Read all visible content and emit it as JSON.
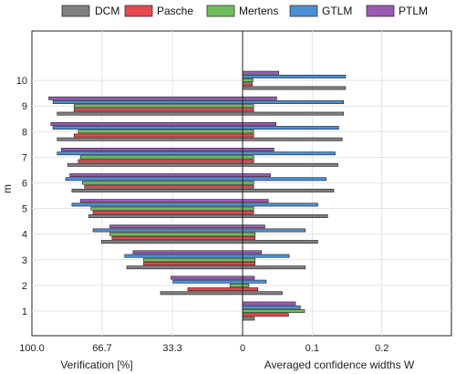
{
  "chart_data": {
    "type": "bar",
    "orientation": "horizontal",
    "legend_position": "top",
    "grid": true,
    "y": {
      "label": "m",
      "categories": [
        1,
        2,
        3,
        4,
        5,
        6,
        7,
        8,
        9,
        10
      ],
      "tick_labels": [
        "1",
        "2",
        "3",
        "4",
        "5",
        "6",
        "7",
        "8",
        "9",
        "10"
      ]
    },
    "left_panel": {
      "xlabel": "Verification [%]",
      "xlim": [
        100,
        0
      ],
      "ticks": [
        100,
        66.7,
        33.3,
        0
      ],
      "tick_labels": [
        "100.0",
        "66.7",
        "33.3",
        "0"
      ]
    },
    "right_panel": {
      "xlabel": "Averaged confidence widths W",
      "xlim": [
        0,
        0.3
      ],
      "ticks": [
        0,
        0.1,
        0.2
      ],
      "tick_labels": [
        "0",
        "0.1",
        "0.2"
      ]
    },
    "series": [
      {
        "name": "DCM",
        "color": "#7f7f7f",
        "verification": [
          null,
          39,
          55,
          67,
          73,
          81,
          83,
          88,
          88,
          null
        ],
        "width": [
          0.017,
          0.057,
          0.09,
          0.108,
          0.122,
          0.131,
          0.137,
          0.143,
          0.145,
          0.148
        ]
      },
      {
        "name": "Pasche",
        "color": "#e8474e",
        "verification": [
          null,
          26,
          47,
          62,
          71,
          75,
          78,
          80,
          80,
          null
        ],
        "width": [
          0.066,
          0.022,
          0.018,
          0.018,
          0.016,
          0.016,
          0.016,
          0.016,
          0.016,
          0.014
        ]
      },
      {
        "name": "Mertens",
        "color": "#6ebf5c",
        "verification": [
          null,
          6,
          47,
          63,
          72,
          76,
          77,
          78,
          80,
          null
        ],
        "width": [
          0.089,
          0.009,
          0.018,
          0.018,
          0.016,
          0.016,
          0.016,
          0.016,
          0.016,
          0.015
        ]
      },
      {
        "name": "GTLM",
        "color": "#4a8fd6",
        "verification": [
          null,
          33,
          56,
          71,
          81,
          84,
          88,
          90,
          90,
          null
        ],
        "width": [
          0.083,
          0.034,
          0.067,
          0.09,
          0.108,
          0.12,
          0.133,
          0.138,
          0.145,
          0.148
        ]
      },
      {
        "name": "PTLM",
        "color": "#9b59b6",
        "verification": [
          null,
          34,
          52,
          63,
          77,
          82,
          86,
          91,
          92,
          null
        ],
        "width": [
          0.076,
          0.017,
          0.027,
          0.032,
          0.037,
          0.04,
          0.045,
          0.048,
          0.049,
          0.052
        ]
      }
    ]
  }
}
